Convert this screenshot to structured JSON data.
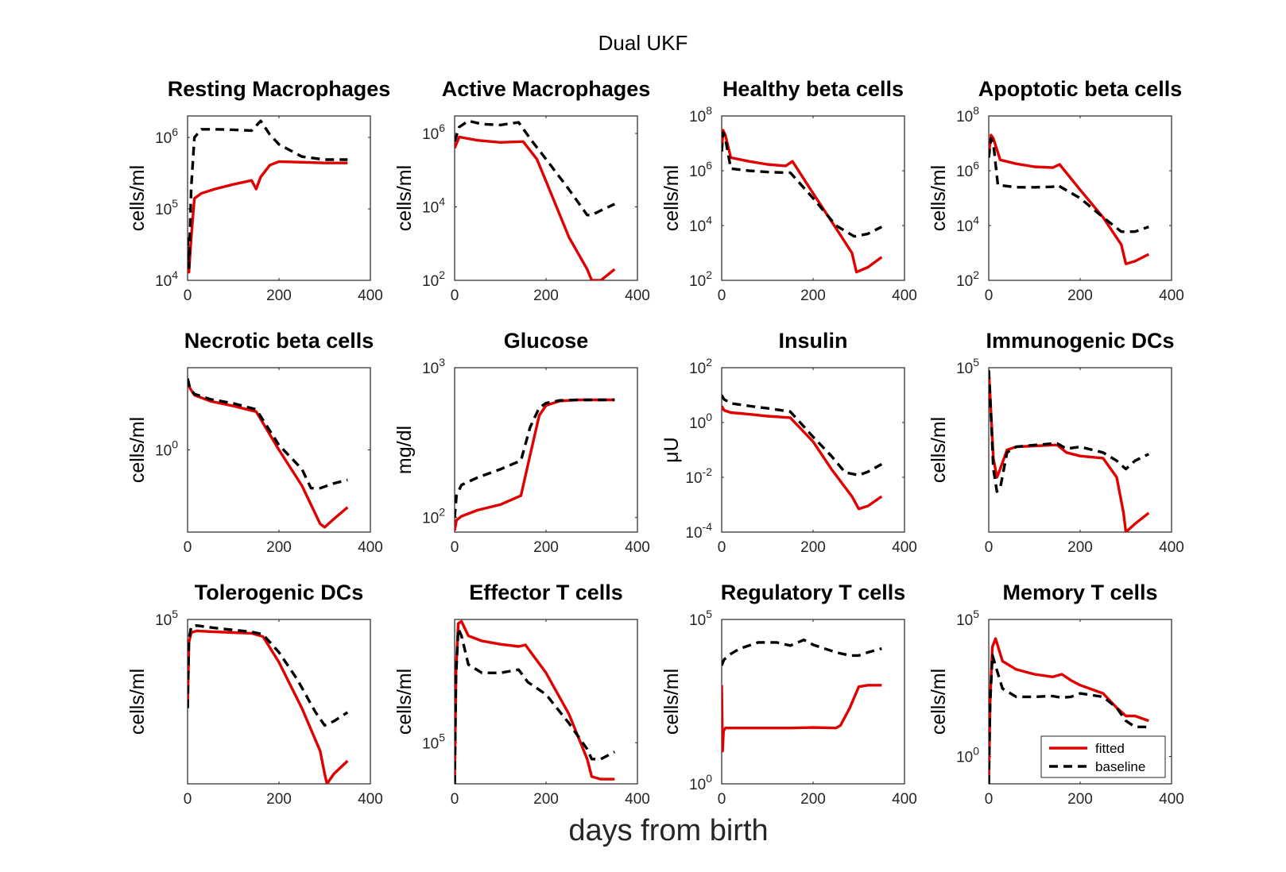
{
  "figure_title": "Dual UKF",
  "xlabel": "days from birth",
  "colors": {
    "fitted": "#e00000",
    "baseline": "#000000"
  },
  "legend": [
    {
      "name": "fitted",
      "color": "#e00000",
      "style": "solid"
    },
    {
      "name": "baseline",
      "color": "#000000",
      "style": "dashed"
    }
  ],
  "legend_placement": "bottom-right of Memory T cells panel",
  "chart_data": [
    {
      "type": "line",
      "title": "Resting Macrophages",
      "ylabel": "cells/ml",
      "xlim": [
        0,
        400
      ],
      "xticks": [
        0,
        200,
        400
      ],
      "yscale": "log",
      "ylim": [
        10000,
        2000000
      ],
      "yticks_exp": [
        4,
        5,
        6
      ],
      "series": [
        {
          "name": "fitted",
          "x": [
            0,
            3,
            8,
            15,
            30,
            60,
            100,
            140,
            150,
            160,
            180,
            200,
            250,
            300,
            350
          ],
          "y": [
            30000,
            13000,
            40000,
            140000,
            165000,
            190000,
            220000,
            250000,
            190000,
            280000,
            410000,
            460000,
            450000,
            440000,
            440000
          ]
        },
        {
          "name": "baseline",
          "x": [
            0,
            3,
            8,
            15,
            30,
            60,
            100,
            140,
            160,
            180,
            200,
            250,
            300,
            350
          ],
          "y": [
            40000,
            15000,
            200000,
            1000000,
            1300000,
            1300000,
            1280000,
            1250000,
            1700000,
            1100000,
            800000,
            540000,
            490000,
            490000
          ]
        }
      ]
    },
    {
      "type": "line",
      "title": "Active Macrophages",
      "ylabel": "cells/ml",
      "xlim": [
        0,
        400
      ],
      "xticks": [
        0,
        200,
        400
      ],
      "yscale": "log",
      "ylim": [
        100,
        3000000
      ],
      "yticks_exp": [
        2,
        4,
        6
      ],
      "series": [
        {
          "name": "fitted",
          "x": [
            0,
            10,
            50,
            100,
            150,
            180,
            200,
            250,
            290,
            300,
            320,
            350
          ],
          "y": [
            400000,
            800000,
            650000,
            570000,
            600000,
            200000,
            50000,
            1500,
            200,
            30,
            70,
            200
          ]
        },
        {
          "name": "baseline",
          "x": [
            0,
            10,
            30,
            60,
            100,
            140,
            170,
            200,
            250,
            290,
            300,
            320,
            350
          ],
          "y": [
            600000,
            1500000,
            2200000,
            1800000,
            1700000,
            2000000,
            600000,
            200000,
            30000,
            6000,
            6000,
            8000,
            12000
          ]
        }
      ]
    },
    {
      "type": "line",
      "title": "Healthy beta cells",
      "ylabel": "cells/ml",
      "xlim": [
        0,
        400
      ],
      "xticks": [
        0,
        200,
        400
      ],
      "yscale": "log",
      "ylim": [
        100,
        100000000
      ],
      "yticks_exp": [
        2,
        4,
        6,
        8
      ],
      "series": [
        {
          "name": "fitted",
          "x": [
            0,
            3,
            8,
            20,
            60,
            100,
            140,
            155,
            200,
            250,
            285,
            295,
            320,
            350
          ],
          "y": [
            5000000,
            30000000,
            20000000,
            3000000,
            2200000,
            1700000,
            1500000,
            2200000,
            150000,
            8000,
            1000,
            200,
            300,
            700
          ]
        },
        {
          "name": "baseline",
          "x": [
            0,
            3,
            8,
            20,
            60,
            100,
            140,
            150,
            200,
            250,
            290,
            320,
            350
          ],
          "y": [
            5000000,
            25000000,
            15000000,
            1200000,
            1000000,
            900000,
            850000,
            850000,
            100000,
            10000,
            4000,
            5000,
            9000
          ]
        }
      ]
    },
    {
      "type": "line",
      "title": "Apoptotic beta cells",
      "ylabel": "cells/ml",
      "xlim": [
        0,
        400
      ],
      "xticks": [
        0,
        200,
        400
      ],
      "yscale": "log",
      "ylim": [
        100,
        100000000
      ],
      "yticks_exp": [
        2,
        4,
        6,
        8
      ],
      "series": [
        {
          "name": "fitted",
          "x": [
            0,
            5,
            10,
            25,
            60,
            100,
            140,
            155,
            200,
            250,
            290,
            300,
            320,
            350
          ],
          "y": [
            4000000,
            20000000,
            15000000,
            2500000,
            1800000,
            1400000,
            1300000,
            1700000,
            200000,
            20000,
            2000,
            400,
            500,
            900
          ]
        },
        {
          "name": "baseline",
          "x": [
            0,
            5,
            10,
            20,
            60,
            100,
            140,
            150,
            200,
            250,
            290,
            320,
            350
          ],
          "y": [
            3000000,
            15000000,
            10000000,
            300000,
            250000,
            250000,
            260000,
            300000,
            100000,
            20000,
            6000,
            6000,
            9000
          ]
        }
      ]
    },
    {
      "type": "line",
      "title": "Necrotic beta cells",
      "ylabel": "cells/ml",
      "xlim": [
        0,
        400
      ],
      "xticks": [
        0,
        200,
        400
      ],
      "yscale": "log",
      "ylim": [
        0.001,
        1000
      ],
      "yticks_exp": [
        0
      ],
      "series": [
        {
          "name": "fitted",
          "x": [
            0,
            5,
            15,
            50,
            100,
            150,
            200,
            250,
            290,
            300,
            320,
            350
          ],
          "y": [
            400,
            180,
            100,
            60,
            40,
            25,
            1,
            0.05,
            0.002,
            0.0015,
            0.003,
            0.008
          ]
        },
        {
          "name": "baseline",
          "x": [
            0,
            5,
            15,
            50,
            100,
            150,
            200,
            250,
            270,
            290,
            320,
            350
          ],
          "y": [
            400,
            180,
            110,
            70,
            50,
            30,
            1.5,
            0.2,
            0.04,
            0.04,
            0.06,
            0.08
          ]
        }
      ]
    },
    {
      "type": "line",
      "title": "Glucose",
      "ylabel": "mg/dl",
      "xlim": [
        0,
        400
      ],
      "xticks": [
        0,
        200,
        400
      ],
      "yscale": "log",
      "ylim": [
        80,
        1000
      ],
      "yticks_exp": [
        2,
        3
      ],
      "series": [
        {
          "name": "fitted",
          "x": [
            0,
            4,
            15,
            50,
            100,
            145,
            165,
            185,
            200,
            230,
            270,
            310,
            350
          ],
          "y": [
            82,
            96,
            102,
            112,
            122,
            140,
            260,
            480,
            560,
            600,
            610,
            610,
            610
          ]
        },
        {
          "name": "baseline",
          "x": [
            0,
            4,
            15,
            50,
            100,
            145,
            165,
            185,
            200,
            230,
            270,
            310,
            350
          ],
          "y": [
            100,
            140,
            165,
            185,
            210,
            240,
            400,
            540,
            580,
            605,
            610,
            610,
            610
          ]
        }
      ]
    },
    {
      "type": "line",
      "title": "Insulin",
      "ylabel": "μU",
      "xlim": [
        0,
        400
      ],
      "xticks": [
        0,
        200,
        400
      ],
      "yscale": "log",
      "ylim": [
        0.0001,
        100
      ],
      "yticks_exp": [
        -4,
        -2,
        0,
        2
      ],
      "series": [
        {
          "name": "fitted",
          "x": [
            0,
            5,
            20,
            60,
            100,
            150,
            200,
            240,
            285,
            300,
            320,
            350
          ],
          "y": [
            4,
            2.8,
            2.3,
            2,
            1.7,
            1.5,
            0.2,
            0.02,
            0.002,
            0.0007,
            0.0009,
            0.002
          ]
        },
        {
          "name": "baseline",
          "x": [
            0,
            5,
            20,
            60,
            100,
            150,
            200,
            240,
            270,
            300,
            320,
            350
          ],
          "y": [
            10,
            7,
            5,
            4,
            3.3,
            2.5,
            0.3,
            0.06,
            0.015,
            0.012,
            0.016,
            0.03
          ]
        }
      ]
    },
    {
      "type": "line",
      "title": "Immunogenic DCs",
      "ylabel": "cells/ml",
      "xlim": [
        0,
        400
      ],
      "xticks": [
        0,
        200,
        400
      ],
      "yscale": "log",
      "ylim": [
        0.1,
        100000
      ],
      "yticks_exp": [
        5
      ],
      "series": [
        {
          "name": "fitted",
          "x": [
            0,
            3,
            10,
            18,
            25,
            40,
            60,
            100,
            140,
            150,
            170,
            200,
            250,
            280,
            295,
            300,
            320,
            350
          ],
          "y": [
            80000,
            10000,
            50,
            10,
            20,
            100,
            130,
            140,
            150,
            150,
            80,
            60,
            50,
            10,
            0.5,
            0.1,
            0.2,
            0.5
          ]
        },
        {
          "name": "baseline",
          "x": [
            0,
            3,
            10,
            18,
            25,
            40,
            60,
            100,
            140,
            150,
            170,
            200,
            250,
            280,
            300,
            320,
            350
          ],
          "y": [
            80000,
            10000,
            20,
            3,
            4,
            80,
            130,
            150,
            170,
            170,
            110,
            130,
            80,
            40,
            20,
            40,
            70
          ]
        }
      ]
    },
    {
      "type": "line",
      "title": "Tolerogenic DCs",
      "ylabel": "cells/ml",
      "xlim": [
        0,
        400
      ],
      "xticks": [
        0,
        200,
        400
      ],
      "yscale": "log",
      "ylim": [
        1,
        100000
      ],
      "yticks_exp": [
        5
      ],
      "series": [
        {
          "name": "fitted",
          "x": [
            0,
            3,
            8,
            20,
            60,
            100,
            140,
            165,
            200,
            250,
            290,
            300,
            305,
            320,
            350
          ],
          "y": [
            200,
            20000,
            40000,
            45000,
            42000,
            40000,
            38000,
            30000,
            5000,
            200,
            10,
            2,
            1,
            2,
            5
          ]
        },
        {
          "name": "baseline",
          "x": [
            0,
            3,
            8,
            20,
            60,
            100,
            140,
            165,
            200,
            240,
            280,
            300,
            320,
            350
          ],
          "y": [
            200,
            25000,
            60000,
            65000,
            55000,
            48000,
            42000,
            35000,
            10000,
            1500,
            150,
            60,
            80,
            150
          ]
        }
      ]
    },
    {
      "type": "line",
      "title": "Effector T cells",
      "ylabel": "cells/ml",
      "xlim": [
        0,
        400
      ],
      "xticks": [
        0,
        200,
        400
      ],
      "yscale": "log",
      "ylim": [
        10000,
        100000000
      ],
      "yticks_exp": [
        5
      ],
      "series": [
        {
          "name": "fitted",
          "x": [
            0,
            3,
            8,
            15,
            30,
            60,
            100,
            140,
            155,
            200,
            250,
            290,
            300,
            320,
            350
          ],
          "y": [
            10000,
            5000000,
            80000000,
            90000000,
            40000000,
            30000000,
            25000000,
            22000000,
            24000000,
            5000000,
            500000,
            40000,
            15000,
            13000,
            13000
          ]
        },
        {
          "name": "baseline",
          "x": [
            0,
            3,
            8,
            15,
            30,
            60,
            100,
            140,
            160,
            200,
            250,
            290,
            300,
            320,
            350
          ],
          "y": [
            10000,
            4000000,
            60000000,
            40000000,
            8000000,
            5000000,
            5000000,
            6000000,
            3000000,
            1500000,
            300000,
            70000,
            40000,
            40000,
            60000
          ]
        }
      ]
    },
    {
      "type": "line",
      "title": "Regulatory T cells",
      "ylabel": "cells/ml",
      "xlim": [
        0,
        400
      ],
      "xticks": [
        0,
        200,
        400
      ],
      "yscale": "log",
      "ylim": [
        1,
        100000
      ],
      "yticks_exp": [
        0,
        5
      ],
      "series": [
        {
          "name": "fitted",
          "x": [
            0,
            2,
            4,
            8,
            20,
            60,
            100,
            150,
            200,
            250,
            260,
            280,
            300,
            320,
            350
          ],
          "y": [
            1000,
            10,
            40,
            50,
            50,
            50,
            50,
            50,
            52,
            50,
            60,
            200,
            900,
            1000,
            1000
          ]
        },
        {
          "name": "baseline",
          "x": [
            0,
            5,
            20,
            40,
            80,
            120,
            150,
            180,
            200,
            250,
            280,
            300,
            320,
            350
          ],
          "y": [
            4000,
            6000,
            9000,
            13000,
            20000,
            20000,
            16000,
            24000,
            17000,
            10000,
            8000,
            8000,
            10000,
            13000
          ]
        }
      ]
    },
    {
      "type": "line",
      "title": "Memory T cells",
      "ylabel": "cells/ml",
      "xlim": [
        0,
        400
      ],
      "xticks": [
        0,
        200,
        400
      ],
      "yscale": "log",
      "ylim": [
        0.1,
        100000
      ],
      "yticks_exp": [
        0,
        5
      ],
      "series": [
        {
          "name": "fitted",
          "x": [
            0,
            3,
            8,
            15,
            30,
            60,
            100,
            140,
            160,
            180,
            200,
            250,
            280,
            300,
            320,
            350
          ],
          "y": [
            0.1,
            100,
            10000,
            20000,
            3000,
            1500,
            1000,
            800,
            1000,
            600,
            400,
            200,
            60,
            30,
            30,
            20
          ]
        },
        {
          "name": "baseline",
          "x": [
            0,
            3,
            8,
            15,
            30,
            60,
            100,
            140,
            160,
            180,
            200,
            250,
            280,
            300,
            320,
            350
          ],
          "y": [
            0.1,
            80,
            5000,
            2000,
            300,
            150,
            150,
            160,
            140,
            150,
            200,
            150,
            60,
            20,
            12,
            12
          ]
        }
      ]
    }
  ]
}
